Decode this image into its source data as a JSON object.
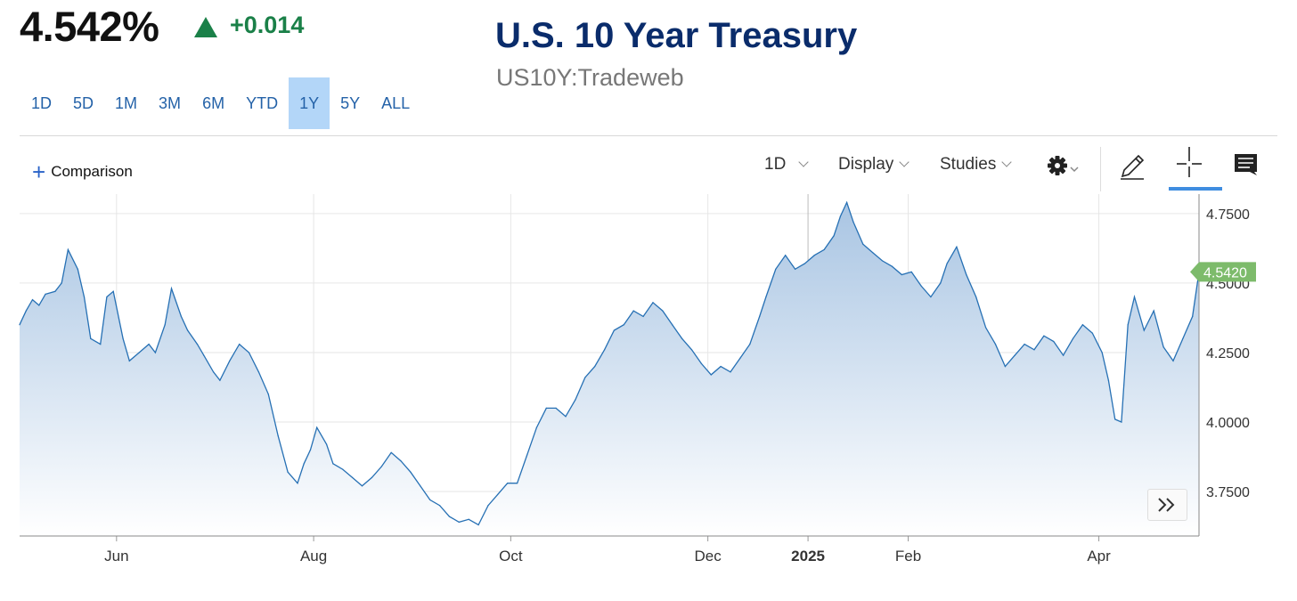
{
  "header": {
    "price": "4.542%",
    "change": "+0.014",
    "title": "U.S. 10 Year Treasury",
    "subtitle": "US10Y:Tradeweb"
  },
  "ranges": [
    "1D",
    "5D",
    "1M",
    "3M",
    "6M",
    "YTD",
    "1Y",
    "5Y",
    "ALL"
  ],
  "active_range": "1Y",
  "toolbar": {
    "comparison": "Comparison",
    "interval": "1D",
    "display": "Display",
    "studies": "Studies"
  },
  "icons": [
    "gear-icon",
    "pencil-icon",
    "crosshair-icon",
    "comment-icon",
    "fast-forward-icon",
    "triangle-up-icon",
    "plus-icon"
  ],
  "colors": {
    "line": "#2670b4",
    "fill_top": "#a9c5e3",
    "positive": "#1a8048",
    "last_tag": "#7dbb6b",
    "title": "#0a2c6b"
  },
  "chart_data": {
    "type": "area",
    "title": "U.S. 10 Year Treasury",
    "xlabel": "",
    "ylabel": "",
    "ylim": [
      3.59,
      4.82
    ],
    "y_ticks": [
      "4.7500",
      "4.5000",
      "4.2500",
      "4.0000",
      "3.7500"
    ],
    "y_tick_values": [
      4.75,
      4.5,
      4.25,
      4.0,
      3.75
    ],
    "x_ticks": [
      "Jun",
      "Aug",
      "Oct",
      "Dec",
      "2025",
      "Feb",
      "Apr"
    ],
    "x_tick_dates": [
      "2024-06-01",
      "2024-08-01",
      "2024-10-01",
      "2024-12-01",
      "2025-01-01",
      "2025-02-01",
      "2025-04-01"
    ],
    "last_value_label": "4.5420",
    "grid": true,
    "series": [
      {
        "x": [
          "2024-05-02",
          "2024-05-04",
          "2024-05-06",
          "2024-05-08",
          "2024-05-10",
          "2024-05-13",
          "2024-05-15",
          "2024-05-17",
          "2024-05-20",
          "2024-05-22",
          "2024-05-24",
          "2024-05-27",
          "2024-05-29",
          "2024-05-31",
          "2024-06-03",
          "2024-06-05",
          "2024-06-08",
          "2024-06-11",
          "2024-06-13",
          "2024-06-16",
          "2024-06-18",
          "2024-06-21",
          "2024-06-23",
          "2024-06-26",
          "2024-06-28",
          "2024-07-01",
          "2024-07-03",
          "2024-07-06",
          "2024-07-09",
          "2024-07-12",
          "2024-07-15",
          "2024-07-18",
          "2024-07-21",
          "2024-07-24",
          "2024-07-27",
          "2024-07-29",
          "2024-07-31",
          "2024-08-02",
          "2024-08-05",
          "2024-08-07",
          "2024-08-10",
          "2024-08-13",
          "2024-08-16",
          "2024-08-19",
          "2024-08-22",
          "2024-08-25",
          "2024-08-28",
          "2024-08-31",
          "2024-09-03",
          "2024-09-06",
          "2024-09-09",
          "2024-09-12",
          "2024-09-15",
          "2024-09-18",
          "2024-09-21",
          "2024-09-24",
          "2024-09-27",
          "2024-09-30",
          "2024-10-03",
          "2024-10-06",
          "2024-10-09",
          "2024-10-12",
          "2024-10-15",
          "2024-10-18",
          "2024-10-21",
          "2024-10-24",
          "2024-10-27",
          "2024-10-30",
          "2024-11-02",
          "2024-11-05",
          "2024-11-08",
          "2024-11-11",
          "2024-11-14",
          "2024-11-17",
          "2024-11-20",
          "2024-11-23",
          "2024-11-26",
          "2024-11-29",
          "2024-12-02",
          "2024-12-05",
          "2024-12-08",
          "2024-12-11",
          "2024-12-14",
          "2024-12-17",
          "2024-12-19",
          "2024-12-22",
          "2024-12-25",
          "2024-12-28",
          "2024-12-31",
          "2025-01-03",
          "2025-01-06",
          "2025-01-09",
          "2025-01-11",
          "2025-01-13",
          "2025-01-15",
          "2025-01-18",
          "2025-01-21",
          "2025-01-24",
          "2025-01-27",
          "2025-01-30",
          "2025-02-02",
          "2025-02-05",
          "2025-02-08",
          "2025-02-11",
          "2025-02-13",
          "2025-02-16",
          "2025-02-19",
          "2025-02-22",
          "2025-02-25",
          "2025-02-28",
          "2025-03-03",
          "2025-03-06",
          "2025-03-09",
          "2025-03-12",
          "2025-03-15",
          "2025-03-18",
          "2025-03-21",
          "2025-03-24",
          "2025-03-27",
          "2025-03-30",
          "2025-04-02",
          "2025-04-04",
          "2025-04-06",
          "2025-04-08",
          "2025-04-10",
          "2025-04-12",
          "2025-04-15",
          "2025-04-18",
          "2025-04-21",
          "2025-04-24",
          "2025-04-27",
          "2025-04-30",
          "2025-05-02"
        ],
        "values": [
          4.35,
          4.4,
          4.44,
          4.42,
          4.46,
          4.47,
          4.5,
          4.62,
          4.55,
          4.45,
          4.3,
          4.28,
          4.45,
          4.47,
          4.3,
          4.22,
          4.25,
          4.28,
          4.25,
          4.35,
          4.48,
          4.38,
          4.33,
          4.28,
          4.24,
          4.18,
          4.15,
          4.22,
          4.28,
          4.25,
          4.18,
          4.1,
          3.95,
          3.82,
          3.78,
          3.85,
          3.9,
          3.98,
          3.92,
          3.85,
          3.83,
          3.8,
          3.77,
          3.8,
          3.84,
          3.89,
          3.86,
          3.82,
          3.77,
          3.72,
          3.7,
          3.66,
          3.64,
          3.65,
          3.63,
          3.7,
          3.74,
          3.78,
          3.78,
          3.88,
          3.98,
          4.05,
          4.05,
          4.02,
          4.08,
          4.16,
          4.2,
          4.26,
          4.33,
          4.35,
          4.4,
          4.38,
          4.43,
          4.4,
          4.35,
          4.3,
          4.26,
          4.21,
          4.17,
          4.2,
          4.18,
          4.23,
          4.28,
          4.38,
          4.45,
          4.55,
          4.6,
          4.55,
          4.57,
          4.6,
          4.62,
          4.67,
          4.74,
          4.79,
          4.72,
          4.64,
          4.61,
          4.58,
          4.56,
          4.53,
          4.54,
          4.49,
          4.45,
          4.5,
          4.57,
          4.63,
          4.53,
          4.45,
          4.34,
          4.28,
          4.2,
          4.24,
          4.28,
          4.26,
          4.31,
          4.29,
          4.24,
          4.3,
          4.35,
          4.32,
          4.25,
          4.15,
          4.01,
          4.0,
          4.35,
          4.45,
          4.33,
          4.4,
          4.27,
          4.22,
          4.3,
          4.38,
          4.54
        ]
      }
    ]
  }
}
